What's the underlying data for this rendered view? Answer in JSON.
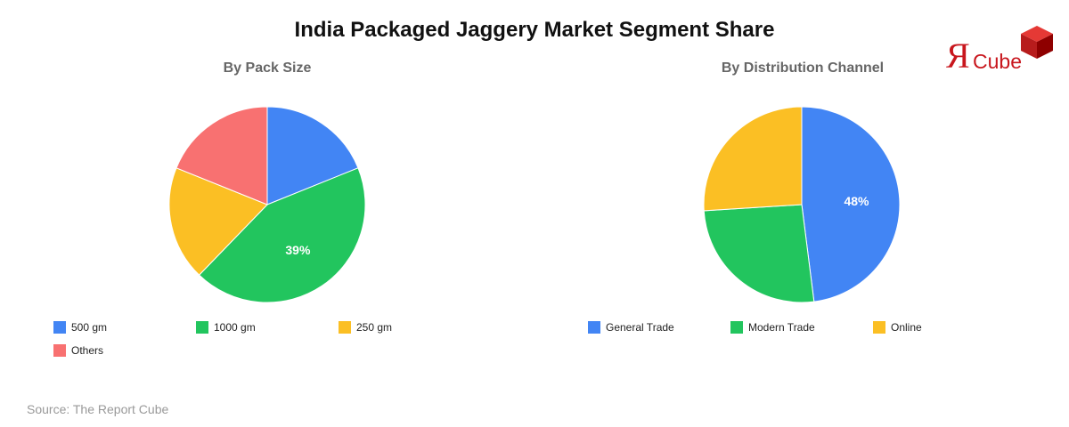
{
  "title": "India Packaged Jaggery Market Segment Share",
  "source": "Source: The Report Cube",
  "logo": {
    "mark": "Я",
    "text": "Cube",
    "color": "#c8161d",
    "icon": "red-cube-icon"
  },
  "chart_data": [
    {
      "type": "pie",
      "title": "By Pack Size",
      "categories": [
        "500 gm",
        "1000 gm",
        "250 gm",
        "Others"
      ],
      "values": [
        17,
        39,
        17,
        17
      ],
      "colors": [
        "#4285f4",
        "#22c55e",
        "#fbbf24",
        "#f87171"
      ],
      "data_labels": [
        "",
        "39%",
        "",
        ""
      ],
      "legend_position": "bottom"
    },
    {
      "type": "pie",
      "title": "By Distribution Channel",
      "categories": [
        "General Trade",
        "Modern Trade",
        "Online"
      ],
      "values": [
        48,
        26,
        26
      ],
      "colors": [
        "#4285f4",
        "#22c55e",
        "#fbbf24"
      ],
      "data_labels": [
        "48%",
        "",
        ""
      ],
      "legend_position": "bottom"
    }
  ]
}
